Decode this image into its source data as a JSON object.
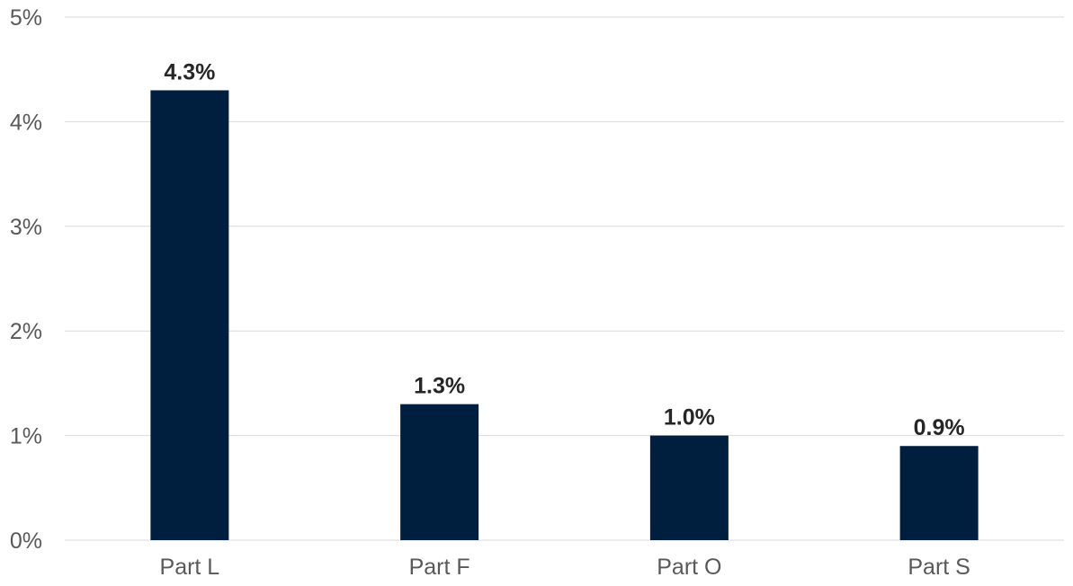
{
  "chart_data": {
    "type": "bar",
    "categories": [
      "Part L",
      "Part F",
      "Part O",
      "Part S"
    ],
    "values": [
      4.3,
      1.3,
      1.0,
      0.9
    ],
    "data_labels": [
      "4.3%",
      "1.3%",
      "1.0%",
      "0.9%"
    ],
    "y_ticks": [
      0,
      1,
      2,
      3,
      4,
      5
    ],
    "y_tick_labels": [
      "0%",
      "1%",
      "2%",
      "3%",
      "4%",
      "5%"
    ],
    "ylim": [
      0,
      5
    ],
    "grid": true,
    "bar_color": "#001f3f",
    "title": "",
    "xlabel": "",
    "ylabel": ""
  }
}
